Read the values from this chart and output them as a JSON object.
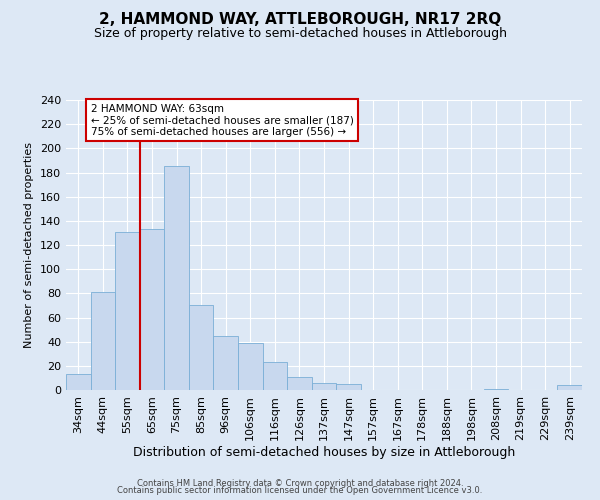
{
  "title": "2, HAMMOND WAY, ATTLEBOROUGH, NR17 2RQ",
  "subtitle": "Size of property relative to semi-detached houses in Attleborough",
  "xlabel": "Distribution of semi-detached houses by size in Attleborough",
  "ylabel": "Number of semi-detached properties",
  "bar_labels": [
    "34sqm",
    "44sqm",
    "55sqm",
    "65sqm",
    "75sqm",
    "85sqm",
    "96sqm",
    "106sqm",
    "116sqm",
    "126sqm",
    "137sqm",
    "147sqm",
    "157sqm",
    "167sqm",
    "178sqm",
    "188sqm",
    "198sqm",
    "208sqm",
    "219sqm",
    "229sqm",
    "239sqm"
  ],
  "bar_values": [
    13,
    81,
    131,
    133,
    185,
    70,
    45,
    39,
    23,
    11,
    6,
    5,
    0,
    0,
    0,
    0,
    0,
    1,
    0,
    0,
    4
  ],
  "bar_color": "#c8d8ee",
  "bar_edge_color": "#7aaed6",
  "vline_color": "#cc0000",
  "vline_x_index": 3,
  "annotation_title": "2 HAMMOND WAY: 63sqm",
  "annotation_line1": "← 25% of semi-detached houses are smaller (187)",
  "annotation_line2": "75% of semi-detached houses are larger (556) →",
  "annotation_box_color": "#ffffff",
  "annotation_box_edge": "#cc0000",
  "ylim": [
    0,
    240
  ],
  "yticks": [
    0,
    20,
    40,
    60,
    80,
    100,
    120,
    140,
    160,
    180,
    200,
    220,
    240
  ],
  "footer_line1": "Contains HM Land Registry data © Crown copyright and database right 2024.",
  "footer_line2": "Contains public sector information licensed under the Open Government Licence v3.0.",
  "bg_color": "#dde8f5",
  "plot_bg_color": "#dde8f5",
  "grid_color": "#ffffff",
  "title_fontsize": 11,
  "subtitle_fontsize": 9,
  "xlabel_fontsize": 9,
  "ylabel_fontsize": 8,
  "tick_fontsize": 8,
  "ann_fontsize": 7.5,
  "footer_fontsize": 6
}
